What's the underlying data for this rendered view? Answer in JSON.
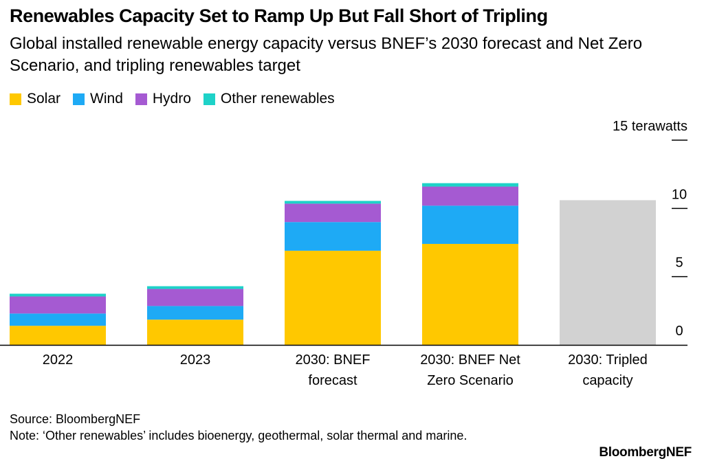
{
  "header": {
    "title": "Renewables Capacity Set to Ramp Up But Fall Short of Tripling",
    "subtitle": "Global installed renewable energy capacity versus BNEF’s 2030 forecast and Net Zero Scenario, and tripling renewables target"
  },
  "colors": {
    "solar": "#ffc800",
    "wind": "#1eaaf5",
    "hydro": "#a55ad2",
    "other": "#1ed2c8",
    "tripled": "#d2d2d2",
    "axis": "#000000"
  },
  "chart_data": {
    "type": "bar",
    "stacked": true,
    "categories": [
      [
        "2022"
      ],
      [
        "2023"
      ],
      [
        "2030: BNEF",
        "forecast"
      ],
      [
        "2030: BNEF Net",
        "Zero Scenario"
      ],
      [
        "2030: Tripled",
        "capacity"
      ]
    ],
    "series": [
      {
        "name": "Solar",
        "color_key": "solar",
        "values": [
          1.4,
          1.85,
          6.9,
          7.4,
          0
        ]
      },
      {
        "name": "Wind",
        "color_key": "wind",
        "values": [
          0.9,
          1.0,
          2.1,
          2.8,
          0
        ]
      },
      {
        "name": "Hydro",
        "color_key": "hydro",
        "values": [
          1.25,
          1.25,
          1.35,
          1.4,
          0
        ]
      },
      {
        "name": "Other renewables",
        "color_key": "other",
        "values": [
          0.2,
          0.2,
          0.2,
          0.25,
          0
        ]
      }
    ],
    "extra_bar": {
      "category_index": 4,
      "value": 10.6,
      "color_key": "tripled"
    },
    "ylim": [
      0,
      15
    ],
    "yticks": [
      0,
      5,
      10,
      15
    ],
    "ytick_labels": [
      "0",
      "5",
      "10",
      "15 terawatts"
    ],
    "grid": false,
    "legend_position": "top-left"
  },
  "footer": {
    "source": "Source: BloombergNEF",
    "note": "Note: ‘Other renewables’ includes bioenergy, geothermal, solar thermal and marine.",
    "brand": "BloombergNEF"
  }
}
